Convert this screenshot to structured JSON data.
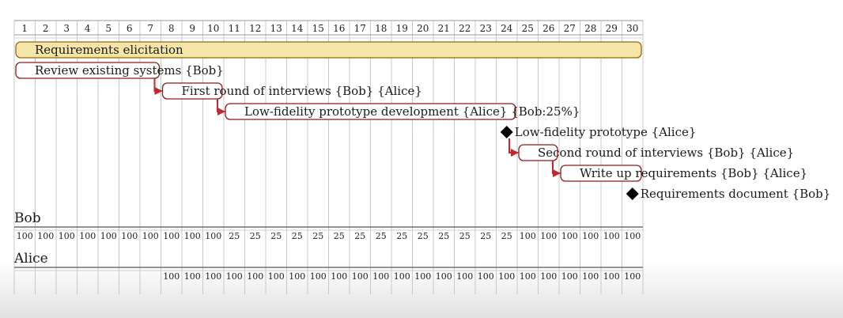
{
  "colors": {
    "task_fill": "#ffffff",
    "task_border": "#8b1a1a",
    "summary_fill": "#f5e6a8",
    "summary_border": "#8b6a10",
    "arrow": "#c0282d",
    "milestone": "#000000",
    "grid": "#c8c8c8",
    "text": "#1a1a1a"
  },
  "chart_data": {
    "type": "gantt",
    "title": "",
    "days": [
      1,
      2,
      3,
      4,
      5,
      6,
      7,
      8,
      9,
      10,
      11,
      12,
      13,
      14,
      15,
      16,
      17,
      18,
      19,
      20,
      21,
      22,
      23,
      24,
      25,
      26,
      27,
      28,
      29,
      30
    ],
    "tasks": [
      {
        "label": "Requirements elicitation",
        "start": 1,
        "end": 30,
        "kind": "summary"
      },
      {
        "label": "Review existing systems {Bob}",
        "start": 1,
        "end": 7,
        "kind": "task"
      },
      {
        "label": "First round of interviews {Bob} {Alice}",
        "start": 8,
        "end": 10,
        "kind": "task",
        "after": 1
      },
      {
        "label": "Low-fidelity prototype development {Alice} {Bob:25%}",
        "start": 11,
        "end": 24,
        "kind": "task",
        "after": 2
      },
      {
        "label": "Low-fidelity prototype {Alice}",
        "start": 24,
        "end": 24,
        "kind": "milestone"
      },
      {
        "label": "Second round of interviews {Bob} {Alice}",
        "start": 25,
        "end": 26,
        "kind": "task",
        "after": 4
      },
      {
        "label": "Write up requirements {Bob} {Alice}",
        "start": 27,
        "end": 30,
        "kind": "task",
        "after": 5
      },
      {
        "label": "Requirements document {Bob}",
        "start": 30,
        "end": 30,
        "kind": "milestone"
      }
    ],
    "resources": [
      {
        "name": "Bob",
        "load": [
          100,
          100,
          100,
          100,
          100,
          100,
          100,
          100,
          100,
          100,
          25,
          25,
          25,
          25,
          25,
          25,
          25,
          25,
          25,
          25,
          25,
          25,
          25,
          25,
          100,
          100,
          100,
          100,
          100,
          100
        ]
      },
      {
        "name": "Alice",
        "load": [
          null,
          null,
          null,
          null,
          null,
          null,
          null,
          100,
          100,
          100,
          100,
          100,
          100,
          100,
          100,
          100,
          100,
          100,
          100,
          100,
          100,
          100,
          100,
          100,
          100,
          100,
          100,
          100,
          100,
          100
        ]
      }
    ]
  }
}
